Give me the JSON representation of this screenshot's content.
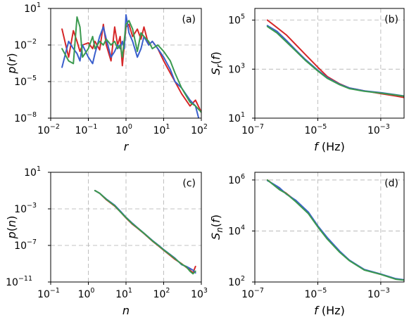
{
  "colors": {
    "red": "#d62728",
    "blue": "#3a5fcd",
    "green": "#3b9a4f",
    "grid": "#b0b0b0"
  },
  "chart_data": [
    {
      "type": "line",
      "panel": "(a)",
      "xlabel": "r",
      "ylabel": "p(r)",
      "xscale": "log",
      "yscale": "log",
      "xlim": [
        0.01,
        100
      ],
      "ylim": [
        1e-08,
        10
      ],
      "xticks": [
        0.01,
        0.1,
        1,
        10,
        100
      ],
      "xtick_labels": [
        [
          "10",
          "−2"
        ],
        [
          "10",
          "−1"
        ],
        [
          "10",
          "0"
        ],
        [
          "10",
          "1"
        ],
        [
          "10",
          "2"
        ]
      ],
      "yticks": [
        1e-08,
        1e-05,
        0.01,
        10
      ],
      "ytick_labels": [
        [
          "10",
          "−8"
        ],
        [
          "10",
          "−5"
        ],
        [
          "10",
          "−2"
        ],
        [
          "10",
          "1"
        ]
      ],
      "grid": true,
      "series": [
        {
          "color": "red",
          "x": [
            0.02,
            0.03,
            0.04,
            0.05,
            0.06,
            0.07,
            0.1,
            0.13,
            0.15,
            0.2,
            0.25,
            0.3,
            0.4,
            0.5,
            0.6,
            0.7,
            0.8,
            1,
            1.2,
            1.5,
            2,
            2.5,
            3,
            4,
            5,
            7,
            10,
            15,
            20,
            30,
            50,
            70,
            100
          ],
          "y": [
            0.2,
            0.001,
            0.15,
            0.02,
            0.003,
            0.01,
            0.015,
            0.005,
            0.02,
            0.004,
            0.5,
            0.01,
            0.0005,
            0.3,
            0.01,
            0.05,
            0.0002,
            0.3,
            0.5,
            0.05,
            0.2,
            0.03,
            0.3,
            0.01,
            0.02,
            0.005,
            0.0005,
            5e-05,
            1e-05,
            1e-06,
            1e-07,
            3e-07,
            3e-08
          ]
        },
        {
          "color": "blue",
          "x": [
            0.02,
            0.03,
            0.04,
            0.05,
            0.06,
            0.07,
            0.1,
            0.13,
            0.15,
            0.2,
            0.25,
            0.3,
            0.4,
            0.5,
            0.6,
            0.7,
            0.8,
            0.9,
            1,
            1.2,
            1.5,
            2,
            2.5,
            3,
            4,
            5,
            7,
            10,
            15,
            20,
            30,
            50,
            70,
            85
          ],
          "y": [
            0.00015,
            0.02,
            0.005,
            0.002,
            0.0005,
            0.01,
            0.001,
            0.0003,
            0.002,
            0.05,
            0.3,
            0.03,
            0.001,
            0.003,
            0.01,
            0.005,
            0.02,
            0.005,
            3,
            0.1,
            0.02,
            0.001,
            0.005,
            0.05,
            0.01,
            0.02,
            0.005,
            0.001,
            0.0001,
            1e-05,
            3e-06,
            3e-07,
            1e-07,
            1e-08
          ]
        },
        {
          "color": "green",
          "x": [
            0.02,
            0.03,
            0.04,
            0.05,
            0.06,
            0.07,
            0.1,
            0.13,
            0.15,
            0.2,
            0.25,
            0.3,
            0.4,
            0.5,
            0.6,
            0.7,
            0.8,
            1,
            1.2,
            1.5,
            2,
            2.5,
            3,
            4,
            5,
            7,
            10,
            15,
            20,
            30,
            50,
            70,
            100
          ],
          "y": [
            0.005,
            0.0005,
            0.0003,
            2,
            0.3,
            0.001,
            0.005,
            0.05,
            0.005,
            0.02,
            0.01,
            0.03,
            0.01,
            0.02,
            0.005,
            0.01,
            0.001,
            0.5,
            1,
            0.2,
            0.003,
            0.1,
            0.05,
            0.02,
            0.005,
            0.01,
            0.003,
            0.0005,
            5e-05,
            3e-06,
            2e-07,
            1e-07,
            3e-08
          ]
        }
      ]
    },
    {
      "type": "line",
      "panel": "(b)",
      "xlabel": "f (Hz)",
      "ylabel": "S_r(f)",
      "xscale": "log",
      "yscale": "log",
      "xlim": [
        1e-07,
        0.0055
      ],
      "ylim": [
        10,
        300000
      ],
      "xticks": [
        1e-07,
        1e-05,
        0.001
      ],
      "xtick_labels": [
        [
          "10",
          "−7"
        ],
        [
          "10",
          "−5"
        ],
        [
          "10",
          "−3"
        ]
      ],
      "yticks": [
        10,
        1000,
        100000
      ],
      "ytick_labels": [
        [
          "10",
          "1"
        ],
        [
          "10",
          "3"
        ],
        [
          "10",
          "5"
        ]
      ],
      "grid": true,
      "series": [
        {
          "color": "red",
          "x": [
            2.5e-07,
            5e-07,
            1e-06,
            2e-06,
            4e-06,
            1e-05,
            2e-05,
            5e-05,
            0.0001,
            0.0003,
            0.001,
            0.003,
            0.0055
          ],
          "y": [
            100000,
            50000,
            25000,
            10000,
            4000,
            1200,
            500,
            250,
            170,
            130,
            100,
            80,
            70
          ]
        },
        {
          "color": "blue",
          "x": [
            2.5e-07,
            5e-07,
            1e-06,
            2e-06,
            4e-06,
            1e-05,
            2e-05,
            5e-05,
            0.0001,
            0.0003,
            0.001,
            0.003,
            0.0055
          ],
          "y": [
            60000,
            35000,
            15000,
            6000,
            2500,
            900,
            450,
            240,
            170,
            130,
            110,
            90,
            80
          ]
        },
        {
          "color": "green",
          "x": [
            2.5e-07,
            5e-07,
            1e-06,
            2e-06,
            4e-06,
            1e-05,
            2e-05,
            5e-05,
            0.0001,
            0.0003,
            0.001,
            0.003,
            0.0055
          ],
          "y": [
            55000,
            30000,
            13000,
            5500,
            2300,
            850,
            420,
            230,
            160,
            125,
            105,
            88,
            78
          ]
        }
      ]
    },
    {
      "type": "line",
      "panel": "(c)",
      "xlabel": "n",
      "ylabel": "p(n)",
      "xscale": "log",
      "yscale": "log",
      "xlim": [
        0.1,
        1000
      ],
      "ylim": [
        1e-11,
        10
      ],
      "xticks": [
        0.1,
        1,
        10,
        100,
        1000
      ],
      "xtick_labels": [
        [
          "10",
          "−1"
        ],
        [
          "10",
          "0"
        ],
        [
          "10",
          "1"
        ],
        [
          "10",
          "2"
        ],
        [
          "10",
          "3"
        ]
      ],
      "yticks": [
        1e-11,
        1e-07,
        0.001,
        10
      ],
      "ytick_labels": [
        [
          "10",
          "−11"
        ],
        [
          "10",
          "−7"
        ],
        [
          "10",
          "−3"
        ],
        [
          "10",
          "1"
        ]
      ],
      "grid": true,
      "series": [
        {
          "color": "red",
          "x": [
            1.5,
            2,
            3,
            5,
            7,
            10,
            15,
            20,
            30,
            50,
            70,
            100,
            150,
            200,
            300,
            400,
            500,
            600,
            700
          ],
          "y": [
            0.1,
            0.05,
            0.01,
            0.002,
            0.0005,
            0.0001,
            2e-05,
            8e-06,
            2e-06,
            3e-07,
            1e-07,
            3e-08,
            8e-09,
            3e-09,
            1e-09,
            4e-10,
            2e-10,
            1e-10,
            5e-10
          ]
        },
        {
          "color": "blue",
          "x": [
            1.5,
            2,
            3,
            5,
            7,
            10,
            15,
            20,
            30,
            50,
            70,
            100,
            150,
            200,
            300,
            400,
            500,
            600,
            700
          ],
          "y": [
            0.1,
            0.05,
            0.012,
            0.0025,
            0.0006,
            0.00012,
            2.5e-05,
            9e-06,
            2.2e-06,
            3.5e-07,
            1.2e-07,
            3.5e-08,
            1e-08,
            4e-09,
            8e-10,
            5e-10,
            3e-10,
            2e-10,
            1e-10
          ]
        },
        {
          "color": "green",
          "x": [
            1.5,
            2,
            3,
            5,
            7,
            10,
            15,
            20,
            30,
            50,
            70,
            100,
            150,
            200,
            300,
            400,
            500,
            600,
            700
          ],
          "y": [
            0.1,
            0.05,
            0.011,
            0.0022,
            0.0005,
            0.00011,
            2.2e-05,
            8.5e-06,
            2.1e-06,
            3.2e-07,
            1.1e-07,
            3.2e-08,
            9e-09,
            3.5e-09,
            9e-10,
            4.5e-10,
            1.5e-10,
            8e-11,
            1.5e-10
          ]
        }
      ]
    },
    {
      "type": "line",
      "panel": "(d)",
      "xlabel": "f (Hz)",
      "ylabel": "S_n(f)",
      "xscale": "log",
      "yscale": "log",
      "xlim": [
        1e-07,
        0.0055
      ],
      "ylim": [
        100,
        2000000
      ],
      "xticks": [
        1e-07,
        1e-05,
        0.001
      ],
      "xtick_labels": [
        [
          "10",
          "−7"
        ],
        [
          "10",
          "−5"
        ],
        [
          "10",
          "−3"
        ]
      ],
      "yticks": [
        100,
        10000,
        1000000
      ],
      "ytick_labels": [
        [
          "10",
          "2"
        ],
        [
          "10",
          "4"
        ],
        [
          "10",
          "6"
        ]
      ],
      "grid": true,
      "series": [
        {
          "color": "red",
          "x": [
            2.5e-07,
            4e-07,
            6e-07,
            1e-06,
            2e-06,
            5e-06,
            1e-05,
            2e-05,
            5e-05,
            0.0001,
            0.0003,
            0.001,
            0.003,
            0.0055
          ],
          "y": [
            1000000,
            650000,
            450000,
            300000,
            150000,
            50000,
            15000,
            5000,
            1500,
            700,
            300,
            200,
            130,
            120
          ]
        },
        {
          "color": "blue",
          "x": [
            2.5e-07,
            4e-07,
            6e-07,
            1e-06,
            2e-06,
            5e-06,
            1e-05,
            2e-05,
            5e-05,
            0.0001,
            0.0003,
            0.001,
            0.003,
            0.0055
          ],
          "y": [
            950000,
            680000,
            500000,
            280000,
            160000,
            55000,
            16000,
            5500,
            1600,
            720,
            310,
            205,
            135,
            122
          ]
        },
        {
          "color": "green",
          "x": [
            2.5e-07,
            4e-07,
            6e-07,
            1e-06,
            2e-06,
            5e-06,
            1e-05,
            2e-05,
            5e-05,
            0.0001,
            0.0003,
            0.001,
            0.003,
            0.0055
          ],
          "y": [
            1000000,
            630000,
            420000,
            290000,
            140000,
            48000,
            14500,
            4800,
            1450,
            690,
            295,
            198,
            128,
            118
          ]
        }
      ]
    }
  ]
}
